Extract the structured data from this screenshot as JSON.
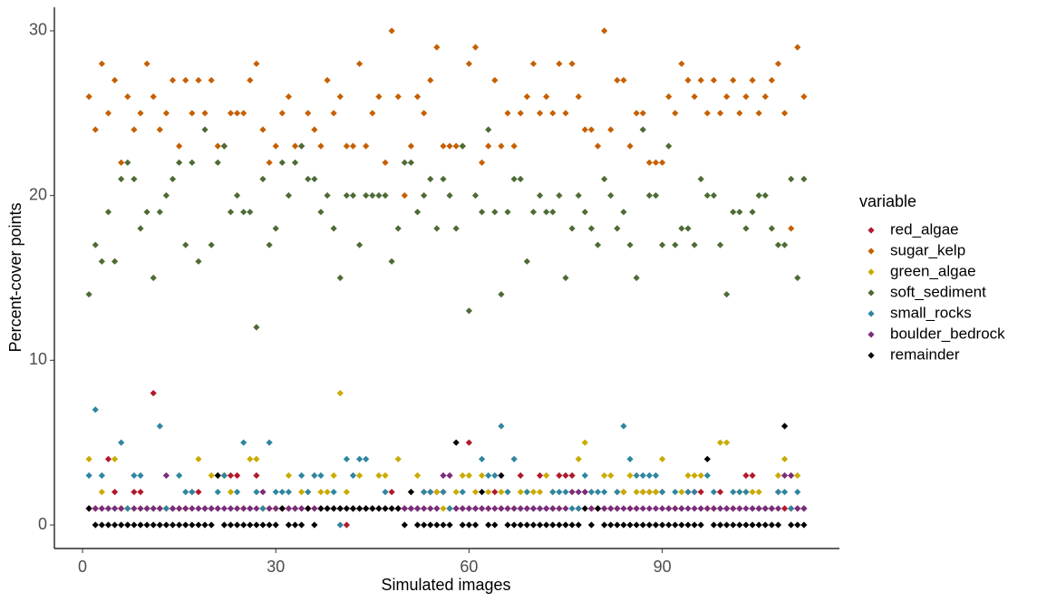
{
  "chart_data": {
    "type": "scatter",
    "x_label": "Simulated images",
    "y_label": "Percent-cover points",
    "legend_title": "variable",
    "legend_position": "right",
    "xlim": [
      -4.37,
      117.5
    ],
    "xticks": [
      0,
      30,
      60,
      90
    ],
    "ylim": [
      -1.43,
      31.43
    ],
    "yticks": [
      0,
      10,
      20,
      30
    ],
    "x": [
      1,
      2,
      3,
      4,
      5,
      6,
      7,
      8,
      9,
      10,
      11,
      12,
      13,
      14,
      15,
      16,
      17,
      18,
      19,
      20,
      21,
      22,
      23,
      24,
      25,
      26,
      27,
      28,
      29,
      30,
      31,
      32,
      33,
      34,
      35,
      36,
      37,
      38,
      39,
      40,
      41,
      42,
      43,
      44,
      45,
      46,
      47,
      48,
      49,
      50,
      51,
      52,
      53,
      54,
      55,
      56,
      57,
      58,
      59,
      60,
      61,
      62,
      63,
      64,
      65,
      66,
      67,
      68,
      69,
      70,
      71,
      72,
      73,
      74,
      75,
      76,
      77,
      78,
      79,
      80,
      81,
      82,
      83,
      84,
      85,
      86,
      87,
      88,
      89,
      90,
      91,
      92,
      93,
      94,
      95,
      96,
      97,
      98,
      99,
      100,
      101,
      102,
      103,
      104,
      105,
      106,
      107,
      108,
      109,
      110,
      111,
      112
    ],
    "series": [
      {
        "name": "red_algae",
        "color": "#b2182b",
        "values": [
          1,
          1,
          1,
          4,
          2,
          1,
          1,
          2,
          2,
          1,
          8,
          1,
          1,
          1,
          1,
          1,
          2,
          2,
          1,
          1,
          1,
          3,
          3,
          3,
          1,
          1,
          3,
          1,
          1,
          1,
          1,
          1,
          1,
          1,
          1,
          1,
          1,
          1,
          1,
          1,
          0,
          1,
          1,
          1,
          1,
          1,
          1,
          2,
          1,
          1,
          1,
          1,
          2,
          2,
          2,
          2,
          1,
          1,
          1,
          5,
          1,
          1,
          1,
          2,
          1,
          1,
          1,
          3,
          1,
          1,
          3,
          1,
          1,
          3,
          3,
          3,
          1,
          2,
          1,
          1,
          1,
          1,
          1,
          2,
          1,
          1,
          2,
          2,
          2,
          2,
          1,
          1,
          1,
          2,
          2,
          2,
          1,
          1,
          2,
          1,
          1,
          1,
          3,
          3,
          1,
          1,
          1,
          2,
          1,
          1,
          1,
          1
        ]
      },
      {
        "name": "sugar_kelp",
        "color": "#c65f00",
        "values": [
          26,
          24,
          28,
          25,
          27,
          22,
          26,
          24,
          25,
          28,
          26,
          24,
          25,
          27,
          23,
          27,
          25,
          27,
          25,
          27,
          23,
          23,
          25,
          25,
          25,
          27,
          28,
          24,
          22,
          23,
          25,
          26,
          23,
          23,
          25,
          24,
          23,
          27,
          25,
          26,
          23,
          23,
          28,
          23,
          25,
          26,
          22,
          30,
          26,
          20,
          23,
          26,
          25,
          27,
          29,
          23,
          23,
          23,
          23,
          28,
          29,
          22,
          23,
          27,
          23,
          25,
          23,
          25,
          26,
          28,
          25,
          26,
          25,
          28,
          25,
          28,
          26,
          24,
          24,
          23,
          30,
          24,
          27,
          27,
          23,
          25,
          25,
          22,
          22,
          22,
          26,
          25,
          28,
          27,
          26,
          27,
          25,
          27,
          25,
          26,
          27,
          25,
          26,
          27,
          25,
          26,
          27,
          28,
          25,
          18,
          29,
          26
        ]
      },
      {
        "name": "green_algae",
        "color": "#c9ab00",
        "values": [
          4,
          1,
          2,
          1,
          4,
          1,
          1,
          1,
          1,
          1,
          1,
          1,
          1,
          1,
          1,
          1,
          1,
          4,
          1,
          3,
          3,
          3,
          2,
          1,
          1,
          4,
          4,
          1,
          1,
          1,
          1,
          3,
          1,
          2,
          2,
          3,
          2,
          2,
          3,
          8,
          2,
          1,
          3,
          1,
          1,
          3,
          3,
          1,
          4,
          1,
          2,
          3,
          1,
          1,
          2,
          1,
          1,
          2,
          3,
          3,
          2,
          3,
          2,
          1,
          2,
          2,
          1,
          2,
          2,
          2,
          2,
          3,
          2,
          1,
          0,
          2,
          4,
          5,
          2,
          1,
          3,
          3,
          2,
          2,
          3,
          2,
          2,
          2,
          2,
          4,
          1,
          1,
          2,
          3,
          3,
          3,
          1,
          1,
          5,
          5,
          1,
          2,
          2,
          2,
          2,
          1,
          1,
          3,
          4,
          3,
          3,
          1
        ]
      },
      {
        "name": "soft_sediment",
        "color": "#4d6b34",
        "values": [
          14,
          17,
          16,
          19,
          16,
          21,
          22,
          21,
          18,
          19,
          15,
          19,
          20,
          21,
          22,
          17,
          22,
          16,
          24,
          17,
          22,
          23,
          19,
          20,
          19,
          19,
          12,
          21,
          17,
          18,
          22,
          20,
          22,
          23,
          21,
          21,
          19,
          20,
          18,
          15,
          20,
          20,
          17,
          20,
          20,
          20,
          20,
          16,
          18,
          22,
          22,
          19,
          20,
          21,
          18,
          21,
          20,
          18,
          23,
          13,
          20,
          19,
          24,
          19,
          14,
          19,
          21,
          21,
          16,
          19,
          20,
          19,
          19,
          20,
          15,
          18,
          20,
          19,
          18,
          17,
          21,
          20,
          18,
          19,
          17,
          15,
          24,
          20,
          20,
          17,
          23,
          17,
          18,
          18,
          17,
          21,
          20,
          20,
          17,
          14,
          19,
          19,
          18,
          19,
          20,
          20,
          18,
          17,
          17,
          21,
          15,
          21
        ]
      },
      {
        "name": "small_rocks",
        "color": "#2e86a0",
        "values": [
          3,
          7,
          3,
          1,
          1,
          5,
          1,
          3,
          3,
          1,
          1,
          6,
          1,
          1,
          3,
          2,
          2,
          1,
          1,
          1,
          2,
          3,
          1,
          2,
          5,
          1,
          2,
          1,
          5,
          2,
          2,
          2,
          1,
          3,
          2,
          3,
          3,
          1,
          2,
          0,
          4,
          3,
          4,
          4,
          1,
          1,
          2,
          1,
          1,
          1,
          1,
          1,
          2,
          2,
          1,
          2,
          1,
          1,
          2,
          1,
          1,
          4,
          3,
          3,
          6,
          2,
          4,
          1,
          2,
          1,
          1,
          1,
          2,
          2,
          2,
          1,
          1,
          3,
          2,
          2,
          2,
          1,
          2,
          6,
          4,
          3,
          3,
          3,
          3,
          2,
          1,
          2,
          1,
          2,
          2,
          1,
          3,
          2,
          1,
          1,
          2,
          2,
          2,
          1,
          1,
          1,
          1,
          2,
          2,
          1,
          2,
          1
        ]
      },
      {
        "name": "boulder_bedrock",
        "color": "#7b2d7b",
        "values": [
          1,
          1,
          1,
          1,
          1,
          1,
          0,
          1,
          1,
          1,
          1,
          1,
          3,
          1,
          1,
          1,
          1,
          1,
          1,
          1,
          1,
          1,
          1,
          1,
          1,
          1,
          1,
          2,
          1,
          1,
          1,
          1,
          1,
          1,
          1,
          1,
          1,
          1,
          1,
          1,
          1,
          1,
          1,
          1,
          1,
          1,
          1,
          1,
          1,
          1,
          1,
          1,
          1,
          1,
          1,
          3,
          3,
          1,
          1,
          1,
          1,
          1,
          1,
          1,
          1,
          1,
          1,
          1,
          1,
          1,
          1,
          1,
          1,
          1,
          1,
          2,
          2,
          2,
          1,
          1,
          1,
          1,
          1,
          1,
          1,
          1,
          1,
          1,
          1,
          1,
          1,
          1,
          1,
          1,
          1,
          1,
          1,
          1,
          1,
          1,
          1,
          1,
          1,
          1,
          1,
          1,
          1,
          1,
          3,
          3,
          1,
          1
        ]
      },
      {
        "name": "remainder",
        "color": "#000000",
        "values": [
          1,
          0,
          0,
          0,
          0,
          0,
          0,
          0,
          0,
          0,
          0,
          0,
          0,
          0,
          0,
          0,
          0,
          0,
          0,
          0,
          3,
          0,
          0,
          0,
          0,
          0,
          0,
          0,
          0,
          0,
          1,
          0,
          0,
          0,
          1,
          0,
          1,
          1,
          1,
          1,
          1,
          1,
          1,
          1,
          1,
          1,
          1,
          1,
          1,
          0,
          2,
          0,
          0,
          0,
          0,
          0,
          0,
          5,
          0,
          0,
          0,
          2,
          0,
          0,
          3,
          0,
          0,
          0,
          0,
          0,
          0,
          0,
          0,
          0,
          0,
          0,
          0,
          1,
          0,
          1,
          0,
          0,
          0,
          0,
          0,
          0,
          0,
          0,
          0,
          0,
          0,
          0,
          0,
          0,
          0,
          0,
          4,
          0,
          0,
          0,
          0,
          0,
          0,
          0,
          0,
          0,
          0,
          0,
          6,
          0,
          0,
          0
        ]
      }
    ]
  }
}
